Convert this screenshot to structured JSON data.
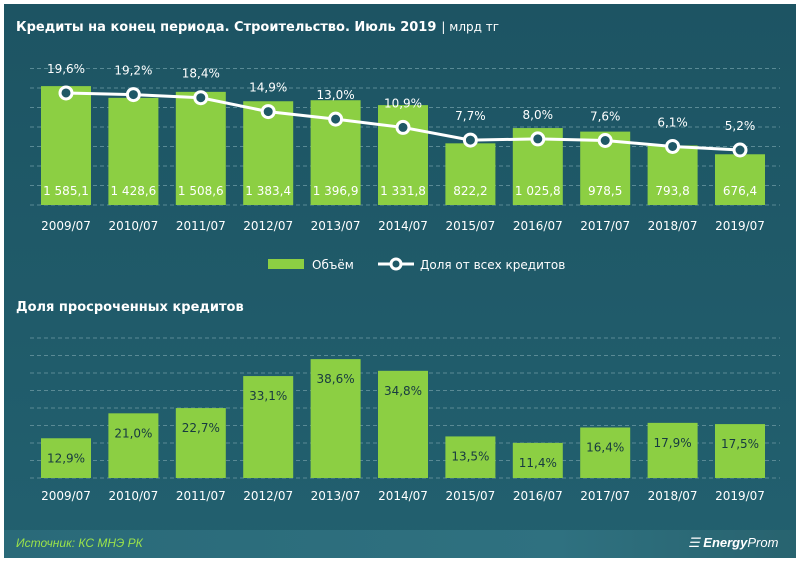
{
  "colors": {
    "bar": "#8ccf43",
    "line": "#ffffff",
    "background": "#1f5866",
    "source": "#9be24a"
  },
  "chart_data": [
    {
      "type": "bar+line",
      "title": "Кредиты на конец периода. Строительство. Июль 2019",
      "unit": "| млрд тг",
      "categories": [
        "2009/07",
        "2010/07",
        "2011/07",
        "2012/07",
        "2013/07",
        "2014/07",
        "2015/07",
        "2016/07",
        "2017/07",
        "2018/07",
        "2019/07"
      ],
      "series": [
        {
          "name": "Объём",
          "type": "bar",
          "values": [
            1585.1,
            1428.6,
            1508.6,
            1383.4,
            1396.9,
            1331.8,
            822.2,
            1025.8,
            978.5,
            793.8,
            676.4
          ],
          "labels": [
            "1 585,1",
            "1 428,6",
            "1 508,6",
            "1 383,4",
            "1 396,9",
            "1 331,8",
            "822,2",
            "1 025,8",
            "978,5",
            "793,8",
            "676,4"
          ]
        },
        {
          "name": "Доля от всех кредитов",
          "type": "line",
          "values": [
            19.6,
            19.2,
            18.4,
            14.9,
            13.0,
            10.9,
            7.7,
            8.0,
            7.6,
            6.1,
            5.2
          ],
          "labels": [
            "19,6%",
            "19,2%",
            "18,4%",
            "14,9%",
            "13,0%",
            "10,9%",
            "7,7%",
            "8,0%",
            "7,6%",
            "6,1%",
            "5,2%"
          ]
        }
      ],
      "legend": "bottom",
      "grid": true
    },
    {
      "type": "bar",
      "title": "Доля просроченных  кредитов",
      "categories": [
        "2009/07",
        "2010/07",
        "2011/07",
        "2012/07",
        "2013/07",
        "2014/07",
        "2015/07",
        "2016/07",
        "2017/07",
        "2018/07",
        "2019/07"
      ],
      "values": [
        12.9,
        21.0,
        22.7,
        33.1,
        38.6,
        34.8,
        13.5,
        11.4,
        16.4,
        17.9,
        17.5
      ],
      "labels": [
        "12,9%",
        "21,0%",
        "22,7%",
        "33,1%",
        "38,6%",
        "34,8%",
        "13,5%",
        "11,4%",
        "16,4%",
        "17,9%",
        "17,5%"
      ],
      "grid": true
    }
  ],
  "footer": {
    "source": "Источник: КС МНЭ РК",
    "logo": "EnergyProm"
  }
}
